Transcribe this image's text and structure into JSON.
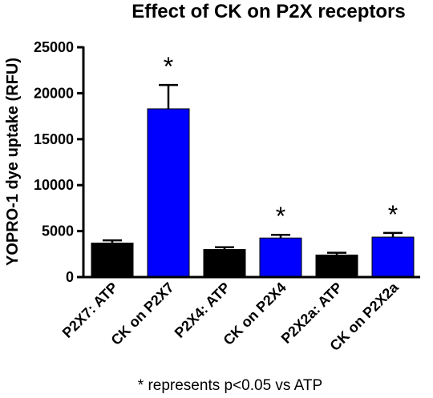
{
  "chart_data": {
    "type": "bar",
    "title": "Effect of CK on P2X receptors",
    "xlabel": "",
    "ylabel": "YOPRO-1 dye uptake (RFU)",
    "ylim": [
      0,
      25000
    ],
    "yticks": [
      0,
      5000,
      10000,
      15000,
      20000,
      25000
    ],
    "categories": [
      "P2X7: ATP",
      "CK on P2X7",
      "P2X4: ATP",
      "CK on P2X4",
      "P2X2a: ATP",
      "CK on P2X2a"
    ],
    "values": [
      3700,
      18300,
      3000,
      4250,
      2400,
      4350
    ],
    "errors": [
      300,
      2600,
      250,
      350,
      250,
      450
    ],
    "bar_colors": [
      "#000000",
      "#0000ff",
      "#000000",
      "#0000ff",
      "#000000",
      "#0000ff"
    ],
    "significance": [
      "",
      "*",
      "",
      "*",
      "",
      "*"
    ],
    "grid": false,
    "footnote": "* represents p<0.05 vs ATP"
  }
}
